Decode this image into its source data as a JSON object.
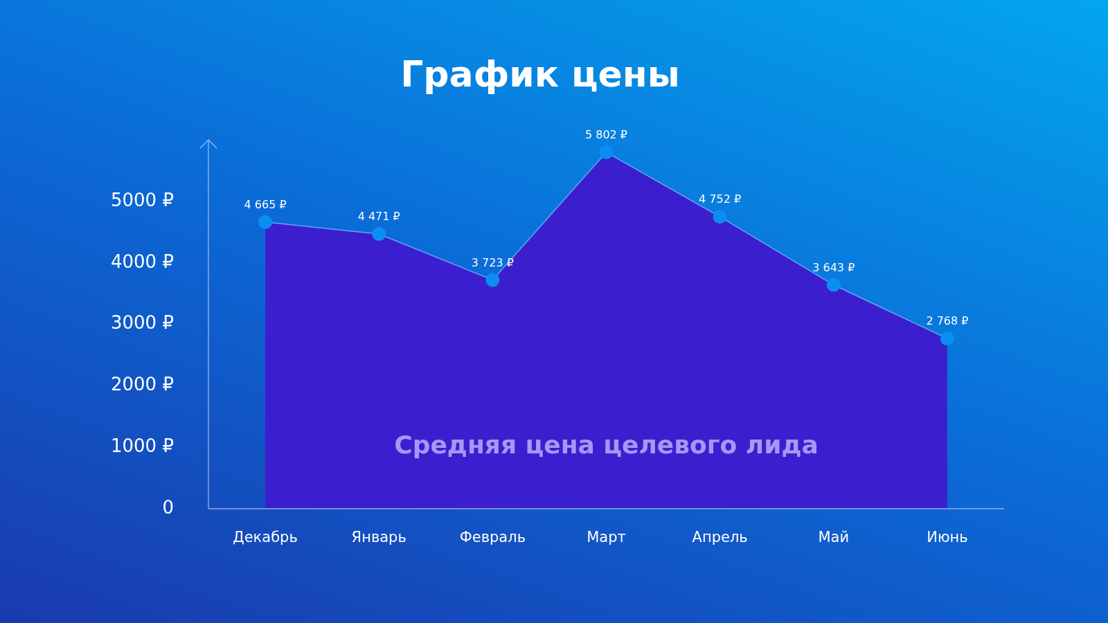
{
  "chart_data": {
    "type": "area",
    "title": "График цены",
    "categories": [
      "Декабрь",
      "Январь",
      "Февраль",
      "Март",
      "Апрель",
      "Май",
      "Июнь"
    ],
    "series": [
      {
        "color": "#0a8ff0",
        "values": [
          4665,
          4471,
          3723,
          5802,
          4752,
          3643,
          2768
        ],
        "value_labels": [
          "4 665 ₽",
          "4 471 ₽",
          "3 723 ₽",
          "5 802 ₽",
          "4 752 ₽",
          "3 643 ₽",
          "2 768 ₽"
        ]
      }
    ],
    "ylim": [
      0,
      6000
    ],
    "yticks": [
      0,
      {
        "value": 1000,
        "label": "1000 ₽"
      },
      {
        "value": 2000,
        "label": "2000 ₽"
      },
      {
        "value": 3000,
        "label": "3000 ₽"
      },
      {
        "value": 4000,
        "label": "4000 ₽"
      },
      {
        "value": 5000,
        "label": "5000 ₽"
      }
    ],
    "grid": false,
    "legend": false,
    "marker": "circle",
    "annotations": [
      "Средняя цена целевого лида"
    ]
  }
}
